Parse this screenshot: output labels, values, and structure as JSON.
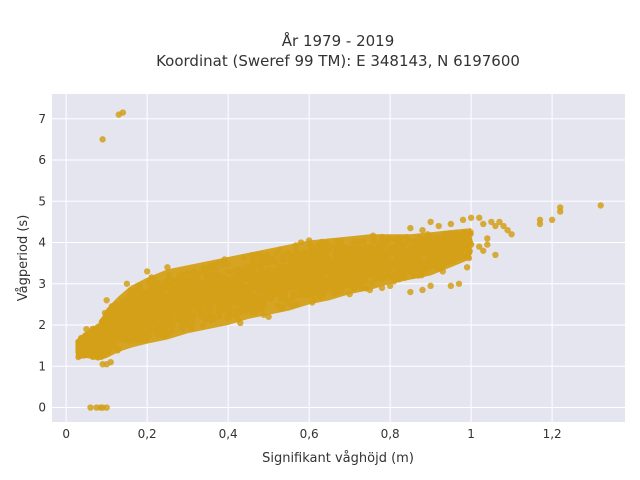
{
  "chart_data": {
    "type": "scatter",
    "title_lines": [
      "År 1979 - 2019",
      "Koordinat (Sweref 99 TM): E 348143, N 6197600"
    ],
    "xlabel": "Signifikant våghöjd (m)",
    "ylabel": "Vågperiod (s)",
    "xlim": [
      -0.035,
      1.38
    ],
    "ylim": [
      -0.35,
      7.6
    ],
    "x_ticks": [
      0,
      0.2,
      0.4,
      0.6,
      0.8,
      1,
      1.2
    ],
    "x_tick_labels": [
      "0",
      "0,2",
      "0,4",
      "0,6",
      "0,8",
      "1",
      "1,2"
    ],
    "y_ticks": [
      0,
      1,
      2,
      3,
      4,
      5,
      6,
      7
    ],
    "y_tick_labels": [
      "0",
      "1",
      "2",
      "3",
      "4",
      "5",
      "6",
      "7"
    ],
    "grid": true,
    "marker_color": "#D4A017",
    "background_color": "#E5E5F0",
    "main_cloud": [
      [
        0.03,
        1.2,
        1.7
      ],
      [
        0.05,
        1.2,
        1.85
      ],
      [
        0.08,
        1.15,
        2.05
      ],
      [
        0.1,
        1.2,
        2.4
      ],
      [
        0.13,
        1.35,
        2.7
      ],
      [
        0.16,
        1.45,
        2.95
      ],
      [
        0.2,
        1.55,
        3.15
      ],
      [
        0.25,
        1.65,
        3.35
      ],
      [
        0.3,
        1.8,
        3.45
      ],
      [
        0.35,
        1.9,
        3.55
      ],
      [
        0.4,
        2.0,
        3.65
      ],
      [
        0.45,
        2.15,
        3.75
      ],
      [
        0.5,
        2.25,
        3.85
      ],
      [
        0.55,
        2.35,
        3.95
      ],
      [
        0.6,
        2.5,
        4.05
      ],
      [
        0.65,
        2.6,
        4.1
      ],
      [
        0.7,
        2.75,
        4.15
      ],
      [
        0.75,
        2.85,
        4.2
      ],
      [
        0.8,
        3.0,
        4.2
      ],
      [
        0.85,
        3.1,
        4.2
      ],
      [
        0.9,
        3.2,
        4.25
      ],
      [
        0.95,
        3.4,
        4.3
      ],
      [
        1.0,
        3.6,
        4.35
      ]
    ],
    "points": [
      [
        0.13,
        7.1
      ],
      [
        0.14,
        7.15
      ],
      [
        0.09,
        6.5
      ],
      [
        0.06,
        0.0
      ],
      [
        0.075,
        0.0
      ],
      [
        0.085,
        0.0
      ],
      [
        0.09,
        0.0
      ],
      [
        0.1,
        0.0
      ],
      [
        1.32,
        4.9
      ],
      [
        1.22,
        4.85
      ],
      [
        1.22,
        4.75
      ],
      [
        1.2,
        4.55
      ],
      [
        1.17,
        4.55
      ],
      [
        1.17,
        4.45
      ],
      [
        1.08,
        4.4
      ],
      [
        1.09,
        4.3
      ],
      [
        1.1,
        4.2
      ],
      [
        1.07,
        4.5
      ],
      [
        1.06,
        4.4
      ],
      [
        1.05,
        4.5
      ],
      [
        1.03,
        4.45
      ],
      [
        1.02,
        4.6
      ],
      [
        1.0,
        4.6
      ],
      [
        0.98,
        4.55
      ],
      [
        1.04,
        4.1
      ],
      [
        1.02,
        3.9
      ],
      [
        1.03,
        3.8
      ],
      [
        1.06,
        3.7
      ],
      [
        1.04,
        3.95
      ],
      [
        1.0,
        3.95
      ],
      [
        0.97,
        3.0
      ],
      [
        0.92,
        3.5
      ],
      [
        0.9,
        2.95
      ],
      [
        0.95,
        2.95
      ],
      [
        0.85,
        2.8
      ],
      [
        0.88,
        2.85
      ],
      [
        0.93,
        3.3
      ],
      [
        0.87,
        3.2
      ],
      [
        0.99,
        3.4
      ],
      [
        0.96,
        3.6
      ],
      [
        0.78,
        2.9
      ],
      [
        0.8,
        2.95
      ],
      [
        0.75,
        2.85
      ],
      [
        0.7,
        2.75
      ],
      [
        0.73,
        2.9
      ],
      [
        0.57,
        2.5
      ],
      [
        0.6,
        4.05
      ],
      [
        0.58,
        4.0
      ],
      [
        0.5,
        2.2
      ],
      [
        0.43,
        2.05
      ],
      [
        0.06,
        1.45
      ],
      [
        0.07,
        1.65
      ],
      [
        0.09,
        1.05
      ],
      [
        0.1,
        1.05
      ],
      [
        0.11,
        1.1
      ],
      [
        0.05,
        1.9
      ],
      [
        0.1,
        2.6
      ],
      [
        0.15,
        3.0
      ],
      [
        0.2,
        3.3
      ],
      [
        0.25,
        3.4
      ],
      [
        0.92,
        4.4
      ],
      [
        0.95,
        4.45
      ],
      [
        0.88,
        4.3
      ],
      [
        0.85,
        4.35
      ],
      [
        0.9,
        4.5
      ],
      [
        0.82,
        4.1
      ],
      [
        0.78,
        4.1
      ],
      [
        0.76,
        4.05
      ]
    ]
  }
}
